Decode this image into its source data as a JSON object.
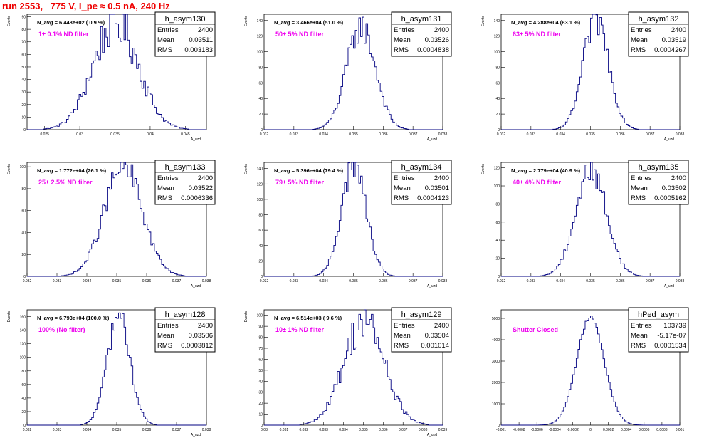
{
  "run_title": "run 2553,   775 V, I_pe ≈ 0.5 nA, 240 Hz",
  "colors": {
    "histogram": "#000080",
    "annotation": "#ee00ee",
    "title": "#ee0000",
    "axis": "#000000"
  },
  "labels": {
    "entries": "Entries",
    "mean": "Mean",
    "rms": "RMS"
  },
  "chart_data": [
    {
      "type": "histogram",
      "name": "h_asym130",
      "entries": "2400",
      "mean": "0.03511",
      "rms": "0.003183",
      "navg": "N_avg = 6.448e+02 ( 0.9 %)",
      "filter": "1± 0.1% ND filter",
      "ylabel": "Events",
      "xlabel": "A_uzd",
      "xlim": [
        0.0225,
        0.048
      ],
      "ylim": [
        0,
        92
      ],
      "xticks": [
        "0.025",
        "0.03",
        "0.035",
        "0.04",
        "0.045"
      ],
      "yticks": [
        "0",
        "10",
        "20",
        "30",
        "40",
        "50",
        "60",
        "70",
        "80",
        "90"
      ],
      "shape": {
        "mu": 0.03511,
        "sigma": 0.003183,
        "peak": 86,
        "jitter": 0.22
      }
    },
    {
      "type": "histogram",
      "name": "h_asym131",
      "entries": "2400",
      "mean": "0.03526",
      "rms": "0.0004838",
      "navg": "N_avg = 3.466e+04 (51.0 %)",
      "filter": "50± 5% ND filter",
      "ylabel": "Events",
      "xlabel": "A_uzd",
      "xlim": [
        0.032,
        0.038
      ],
      "ylim": [
        0,
        148
      ],
      "xticks": [
        "0.032",
        "0.033",
        "0.034",
        "0.035",
        "0.036",
        "0.037",
        "0.038"
      ],
      "yticks": [
        "0",
        "20",
        "40",
        "60",
        "80",
        "100",
        "120",
        "140"
      ],
      "shape": {
        "mu": 0.03526,
        "sigma": 0.0004838,
        "peak": 132,
        "jitter": 0.15
      }
    },
    {
      "type": "histogram",
      "name": "h_asym132",
      "entries": "2400",
      "mean": "0.03519",
      "rms": "0.0004267",
      "navg": "N_avg = 4.288e+04 (63.1 %)",
      "filter": "63± 5% ND filter",
      "ylabel": "Events",
      "xlabel": "A_uzd",
      "xlim": [
        0.032,
        0.038
      ],
      "ylim": [
        0,
        148
      ],
      "xticks": [
        "0.032",
        "0.033",
        "0.034",
        "0.035",
        "0.036",
        "0.037",
        "0.038"
      ],
      "yticks": [
        "0",
        "20",
        "40",
        "60",
        "80",
        "100",
        "120",
        "140"
      ],
      "shape": {
        "mu": 0.03519,
        "sigma": 0.0004267,
        "peak": 142,
        "jitter": 0.15
      }
    },
    {
      "type": "histogram",
      "name": "h_asym133",
      "entries": "2400",
      "mean": "0.03522",
      "rms": "0.0006336",
      "navg": "N_avg = 1.772e+04 (26.1 %)",
      "filter": "25± 2.5% ND filter",
      "ylabel": "Events",
      "xlabel": "A_uzd",
      "xlim": [
        0.032,
        0.038
      ],
      "ylim": [
        0,
        104
      ],
      "xticks": [
        "0.032",
        "0.033",
        "0.034",
        "0.035",
        "0.036",
        "0.037",
        "0.038"
      ],
      "yticks": [
        "0",
        "20",
        "40",
        "60",
        "80",
        "100"
      ],
      "shape": {
        "mu": 0.03522,
        "sigma": 0.0006336,
        "peak": 100,
        "jitter": 0.15
      }
    },
    {
      "type": "histogram",
      "name": "h_asym134",
      "entries": "2400",
      "mean": "0.03501",
      "rms": "0.0004123",
      "navg": "N_avg = 5.396e+04 (79.4 %)",
      "filter": "79± 5% ND filter",
      "ylabel": "Events",
      "xlabel": "A_uzd",
      "xlim": [
        0.032,
        0.038
      ],
      "ylim": [
        0,
        148
      ],
      "xticks": [
        "0.032",
        "0.033",
        "0.034",
        "0.035",
        "0.036",
        "0.037",
        "0.038"
      ],
      "yticks": [
        "0",
        "20",
        "40",
        "60",
        "80",
        "100",
        "120",
        "140"
      ],
      "shape": {
        "mu": 0.03501,
        "sigma": 0.0004123,
        "peak": 145,
        "jitter": 0.13
      }
    },
    {
      "type": "histogram",
      "name": "h_asym135",
      "entries": "2400",
      "mean": "0.03502",
      "rms": "0.0005162",
      "navg": "N_avg = 2.779e+04 (40.9 %)",
      "filter": "40± 4% ND filter",
      "ylabel": "Events",
      "xlabel": "A_uzd",
      "xlim": [
        0.032,
        0.038
      ],
      "ylim": [
        0,
        126
      ],
      "xticks": [
        "0.032",
        "0.033",
        "0.034",
        "0.035",
        "0.036",
        "0.037",
        "0.038"
      ],
      "yticks": [
        "0",
        "20",
        "40",
        "60",
        "80",
        "100",
        "120"
      ],
      "shape": {
        "mu": 0.03502,
        "sigma": 0.0005162,
        "peak": 118,
        "jitter": 0.15
      }
    },
    {
      "type": "histogram",
      "name": "h_asym128",
      "entries": "2400",
      "mean": "0.03506",
      "rms": "0.0003812",
      "navg": "N_avg = 6.793e+04 (100.0 %)",
      "filter": "100% (No filter)",
      "ylabel": "Events",
      "xlabel": "A_uzd",
      "xlim": [
        0.032,
        0.038
      ],
      "ylim": [
        0,
        170
      ],
      "xticks": [
        "0.032",
        "0.033",
        "0.034",
        "0.035",
        "0.036",
        "0.037",
        "0.038"
      ],
      "yticks": [
        "0",
        "20",
        "40",
        "60",
        "80",
        "100",
        "120",
        "140",
        "160"
      ],
      "shape": {
        "mu": 0.03506,
        "sigma": 0.0003812,
        "peak": 162,
        "jitter": 0.12
      }
    },
    {
      "type": "histogram",
      "name": "h_asym129",
      "entries": "2400",
      "mean": "0.03504",
      "rms": "0.001014",
      "navg": "N_avg = 6.514e+03 ( 9.6 %)",
      "filter": "10± 1% ND filter",
      "ylabel": "Events",
      "xlabel": "A_uzd",
      "xlim": [
        0.03,
        0.039
      ],
      "ylim": [
        0,
        105
      ],
      "xticks": [
        "0.03",
        "0.031",
        "0.032",
        "0.033",
        "0.034",
        "0.035",
        "0.036",
        "0.037",
        "0.038",
        "0.039"
      ],
      "yticks": [
        "0",
        "10",
        "20",
        "30",
        "40",
        "50",
        "60",
        "70",
        "80",
        "90",
        "100"
      ],
      "shape": {
        "mu": 0.03504,
        "sigma": 0.001014,
        "peak": 95,
        "jitter": 0.2
      }
    },
    {
      "type": "histogram",
      "name": "hPed_asym",
      "entries": "103739",
      "mean": "-5.17e-07",
      "rms": "0.0001534",
      "navg": "",
      "filter": "Shutter Closed",
      "ylabel": "",
      "xlabel": "",
      "xlim": [
        -0.001,
        0.001
      ],
      "ylim": [
        0,
        5400
      ],
      "xticks": [
        "-0.001",
        "-0.0008",
        "-0.0006",
        "-0.0004",
        "-0.0002",
        "0",
        "0.0002",
        "0.0004",
        "0.0006",
        "0.0008",
        "0.001"
      ],
      "yticks": [
        "0",
        "1000",
        "2000",
        "3000",
        "4000",
        "5000"
      ],
      "shape": {
        "mu": 0.0,
        "sigma": 0.0001534,
        "peak": 5080,
        "jitter": 0.02
      }
    }
  ]
}
